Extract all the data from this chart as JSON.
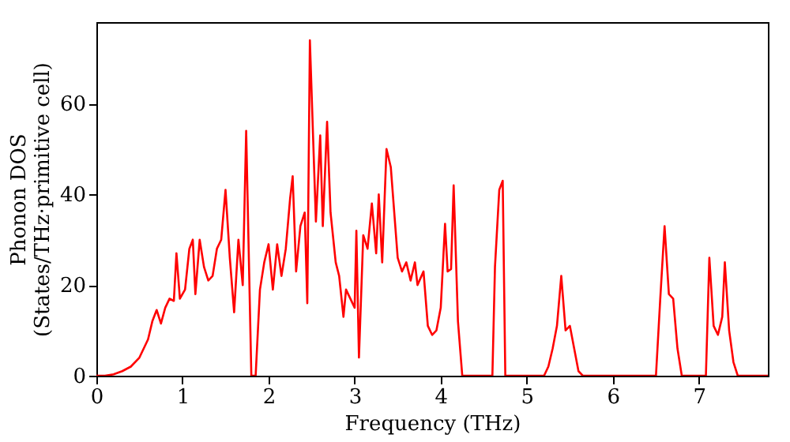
{
  "chart_data": {
    "type": "line",
    "xlabel": "Frequency (THz)",
    "ylabel": "Phonon DOS\n(States/THz·primitive cell)",
    "x": [
      0,
      0.1,
      0.2,
      0.3,
      0.4,
      0.5,
      0.6,
      0.65,
      0.7,
      0.75,
      0.8,
      0.85,
      0.9,
      0.93,
      0.97,
      1.03,
      1.08,
      1.12,
      1.15,
      1.2,
      1.25,
      1.3,
      1.35,
      1.4,
      1.45,
      1.5,
      1.55,
      1.6,
      1.65,
      1.7,
      1.74,
      1.8,
      1.85,
      1.9,
      1.95,
      2.0,
      2.05,
      2.1,
      2.15,
      2.2,
      2.25,
      2.28,
      2.32,
      2.37,
      2.42,
      2.45,
      2.48,
      2.55,
      2.6,
      2.63,
      2.68,
      2.72,
      2.78,
      2.82,
      2.87,
      2.9,
      2.95,
      3.0,
      3.02,
      3.05,
      3.1,
      3.15,
      3.2,
      3.25,
      3.28,
      3.32,
      3.37,
      3.42,
      3.5,
      3.55,
      3.6,
      3.65,
      3.7,
      3.73,
      3.8,
      3.85,
      3.9,
      3.95,
      4.0,
      4.05,
      4.08,
      4.12,
      4.15,
      4.2,
      4.25,
      4.6,
      4.63,
      4.68,
      4.72,
      4.75,
      5.2,
      5.25,
      5.3,
      5.35,
      5.4,
      5.45,
      5.5,
      5.55,
      5.6,
      5.65,
      6.5,
      6.55,
      6.6,
      6.65,
      6.7,
      6.75,
      6.8,
      7.08,
      7.12,
      7.17,
      7.22,
      7.27,
      7.3,
      7.35,
      7.4,
      7.45,
      7.8
    ],
    "series": [
      {
        "color": "#ff0000",
        "values": [
          0,
          0,
          0.3,
          1,
          2,
          4,
          8,
          12,
          14.5,
          11.5,
          15,
          17,
          16.5,
          27,
          17,
          19,
          28,
          30,
          18,
          30,
          24,
          21,
          22,
          28,
          30,
          41,
          26,
          14,
          30,
          20,
          54,
          0,
          0,
          19,
          25,
          29,
          19,
          29,
          22,
          28,
          39,
          44,
          23,
          33,
          36,
          16,
          74,
          34,
          53,
          33,
          56,
          36,
          25,
          22,
          13,
          19,
          17,
          15,
          32,
          4,
          31,
          28,
          38,
          27,
          40,
          25,
          50,
          46,
          26,
          23,
          25,
          21,
          25,
          20,
          23,
          11,
          9,
          10,
          15,
          33.5,
          23,
          23.5,
          42,
          12,
          0,
          0,
          24,
          41,
          43,
          0,
          0,
          2,
          6,
          11,
          22,
          10,
          11,
          6,
          1,
          0,
          0,
          17,
          33,
          18,
          17,
          6,
          0,
          0,
          26,
          11,
          9,
          13,
          25,
          10,
          3,
          0,
          0
        ]
      }
    ],
    "xlim": [
      0,
      7.8
    ],
    "ylim": [
      0,
      78
    ],
    "xticks": [
      0,
      1,
      2,
      3,
      4,
      5,
      6,
      7
    ],
    "yticks": [
      0,
      20,
      40,
      60
    ],
    "grid": false,
    "line_style": "solid",
    "marker": "none"
  }
}
